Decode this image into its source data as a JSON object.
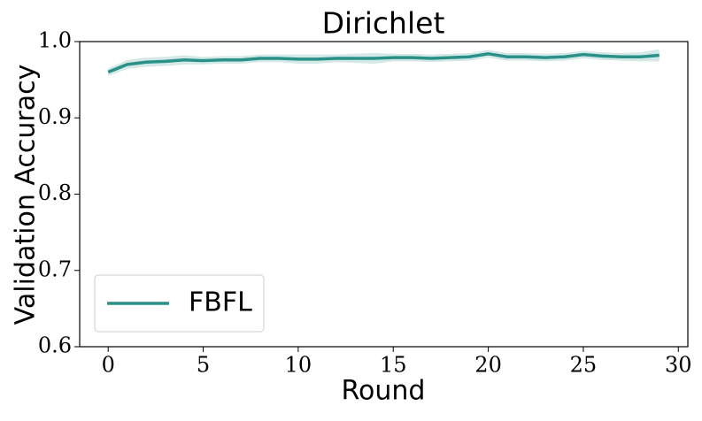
{
  "chart_data": {
    "type": "line",
    "title": "Dirichlet",
    "x_label": "Round",
    "y_label": "Validation Accuracy",
    "x": [
      0,
      1,
      2,
      3,
      4,
      5,
      6,
      7,
      8,
      9,
      10,
      11,
      12,
      13,
      14,
      15,
      16,
      17,
      18,
      19,
      20,
      21,
      22,
      23,
      24,
      25,
      26,
      27,
      28,
      29
    ],
    "series": [
      {
        "name": "FBFL",
        "color": "#2a9188",
        "values": [
          0.96,
          0.97,
          0.973,
          0.974,
          0.976,
          0.975,
          0.976,
          0.976,
          0.978,
          0.978,
          0.977,
          0.977,
          0.978,
          0.978,
          0.978,
          0.979,
          0.979,
          0.978,
          0.979,
          0.98,
          0.984,
          0.98,
          0.98,
          0.979,
          0.98,
          0.983,
          0.981,
          0.98,
          0.98,
          0.982
        ],
        "lower": [
          0.955,
          0.964,
          0.967,
          0.968,
          0.97,
          0.97,
          0.971,
          0.971,
          0.973,
          0.973,
          0.971,
          0.971,
          0.973,
          0.972,
          0.971,
          0.974,
          0.974,
          0.973,
          0.974,
          0.975,
          0.979,
          0.975,
          0.975,
          0.974,
          0.975,
          0.978,
          0.976,
          0.975,
          0.974,
          0.974
        ],
        "upper": [
          0.965,
          0.976,
          0.979,
          0.98,
          0.982,
          0.98,
          0.981,
          0.981,
          0.983,
          0.983,
          0.983,
          0.983,
          0.983,
          0.984,
          0.985,
          0.984,
          0.984,
          0.983,
          0.984,
          0.985,
          0.989,
          0.985,
          0.985,
          0.984,
          0.985,
          0.988,
          0.986,
          0.985,
          0.986,
          0.99
        ]
      }
    ],
    "xlim": [
      -1.5,
      30.5
    ],
    "xticks": [
      0,
      5,
      10,
      15,
      20,
      25,
      30
    ],
    "ylim": [
      0.6,
      1.0
    ],
    "yticks": [
      0.6,
      0.7,
      0.8,
      0.9,
      {
        "value": 1,
        "label": "1.0"
      }
    ],
    "legend": "lower left"
  }
}
